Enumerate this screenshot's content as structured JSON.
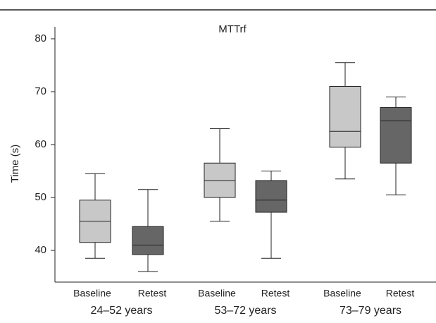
{
  "chart_data": {
    "type": "box",
    "title": "MTTrf",
    "y_label": "Time (s)",
    "categories": [
      "24–52 years",
      "53–72 years",
      "73–79 years"
    ],
    "series": [
      {
        "name": "Baseline",
        "color": "#c8c8c8",
        "values": [
          {
            "min": 38.5,
            "q1": 41.5,
            "median": 45.5,
            "q3": 49.5,
            "max": 54.5
          },
          {
            "min": 45.5,
            "q1": 50,
            "median": 53.2,
            "q3": 56.5,
            "max": 63
          },
          {
            "min": 53.5,
            "q1": 59.5,
            "median": 62.5,
            "q3": 71,
            "max": 75.5
          }
        ]
      },
      {
        "name": "Retest",
        "color": "#666666",
        "values": [
          {
            "min": 36,
            "q1": 39.2,
            "median": 41,
            "q3": 44.5,
            "max": 51.5
          },
          {
            "min": 38.5,
            "q1": 47.2,
            "median": 49.5,
            "q3": 53.2,
            "max": 55
          },
          {
            "min": 50.5,
            "q1": 56.5,
            "median": 64.5,
            "q3": 67,
            "max": 69
          }
        ]
      }
    ],
    "ylim": [
      34,
      82
    ],
    "yticks": [
      40,
      50,
      60,
      70,
      80
    ]
  }
}
